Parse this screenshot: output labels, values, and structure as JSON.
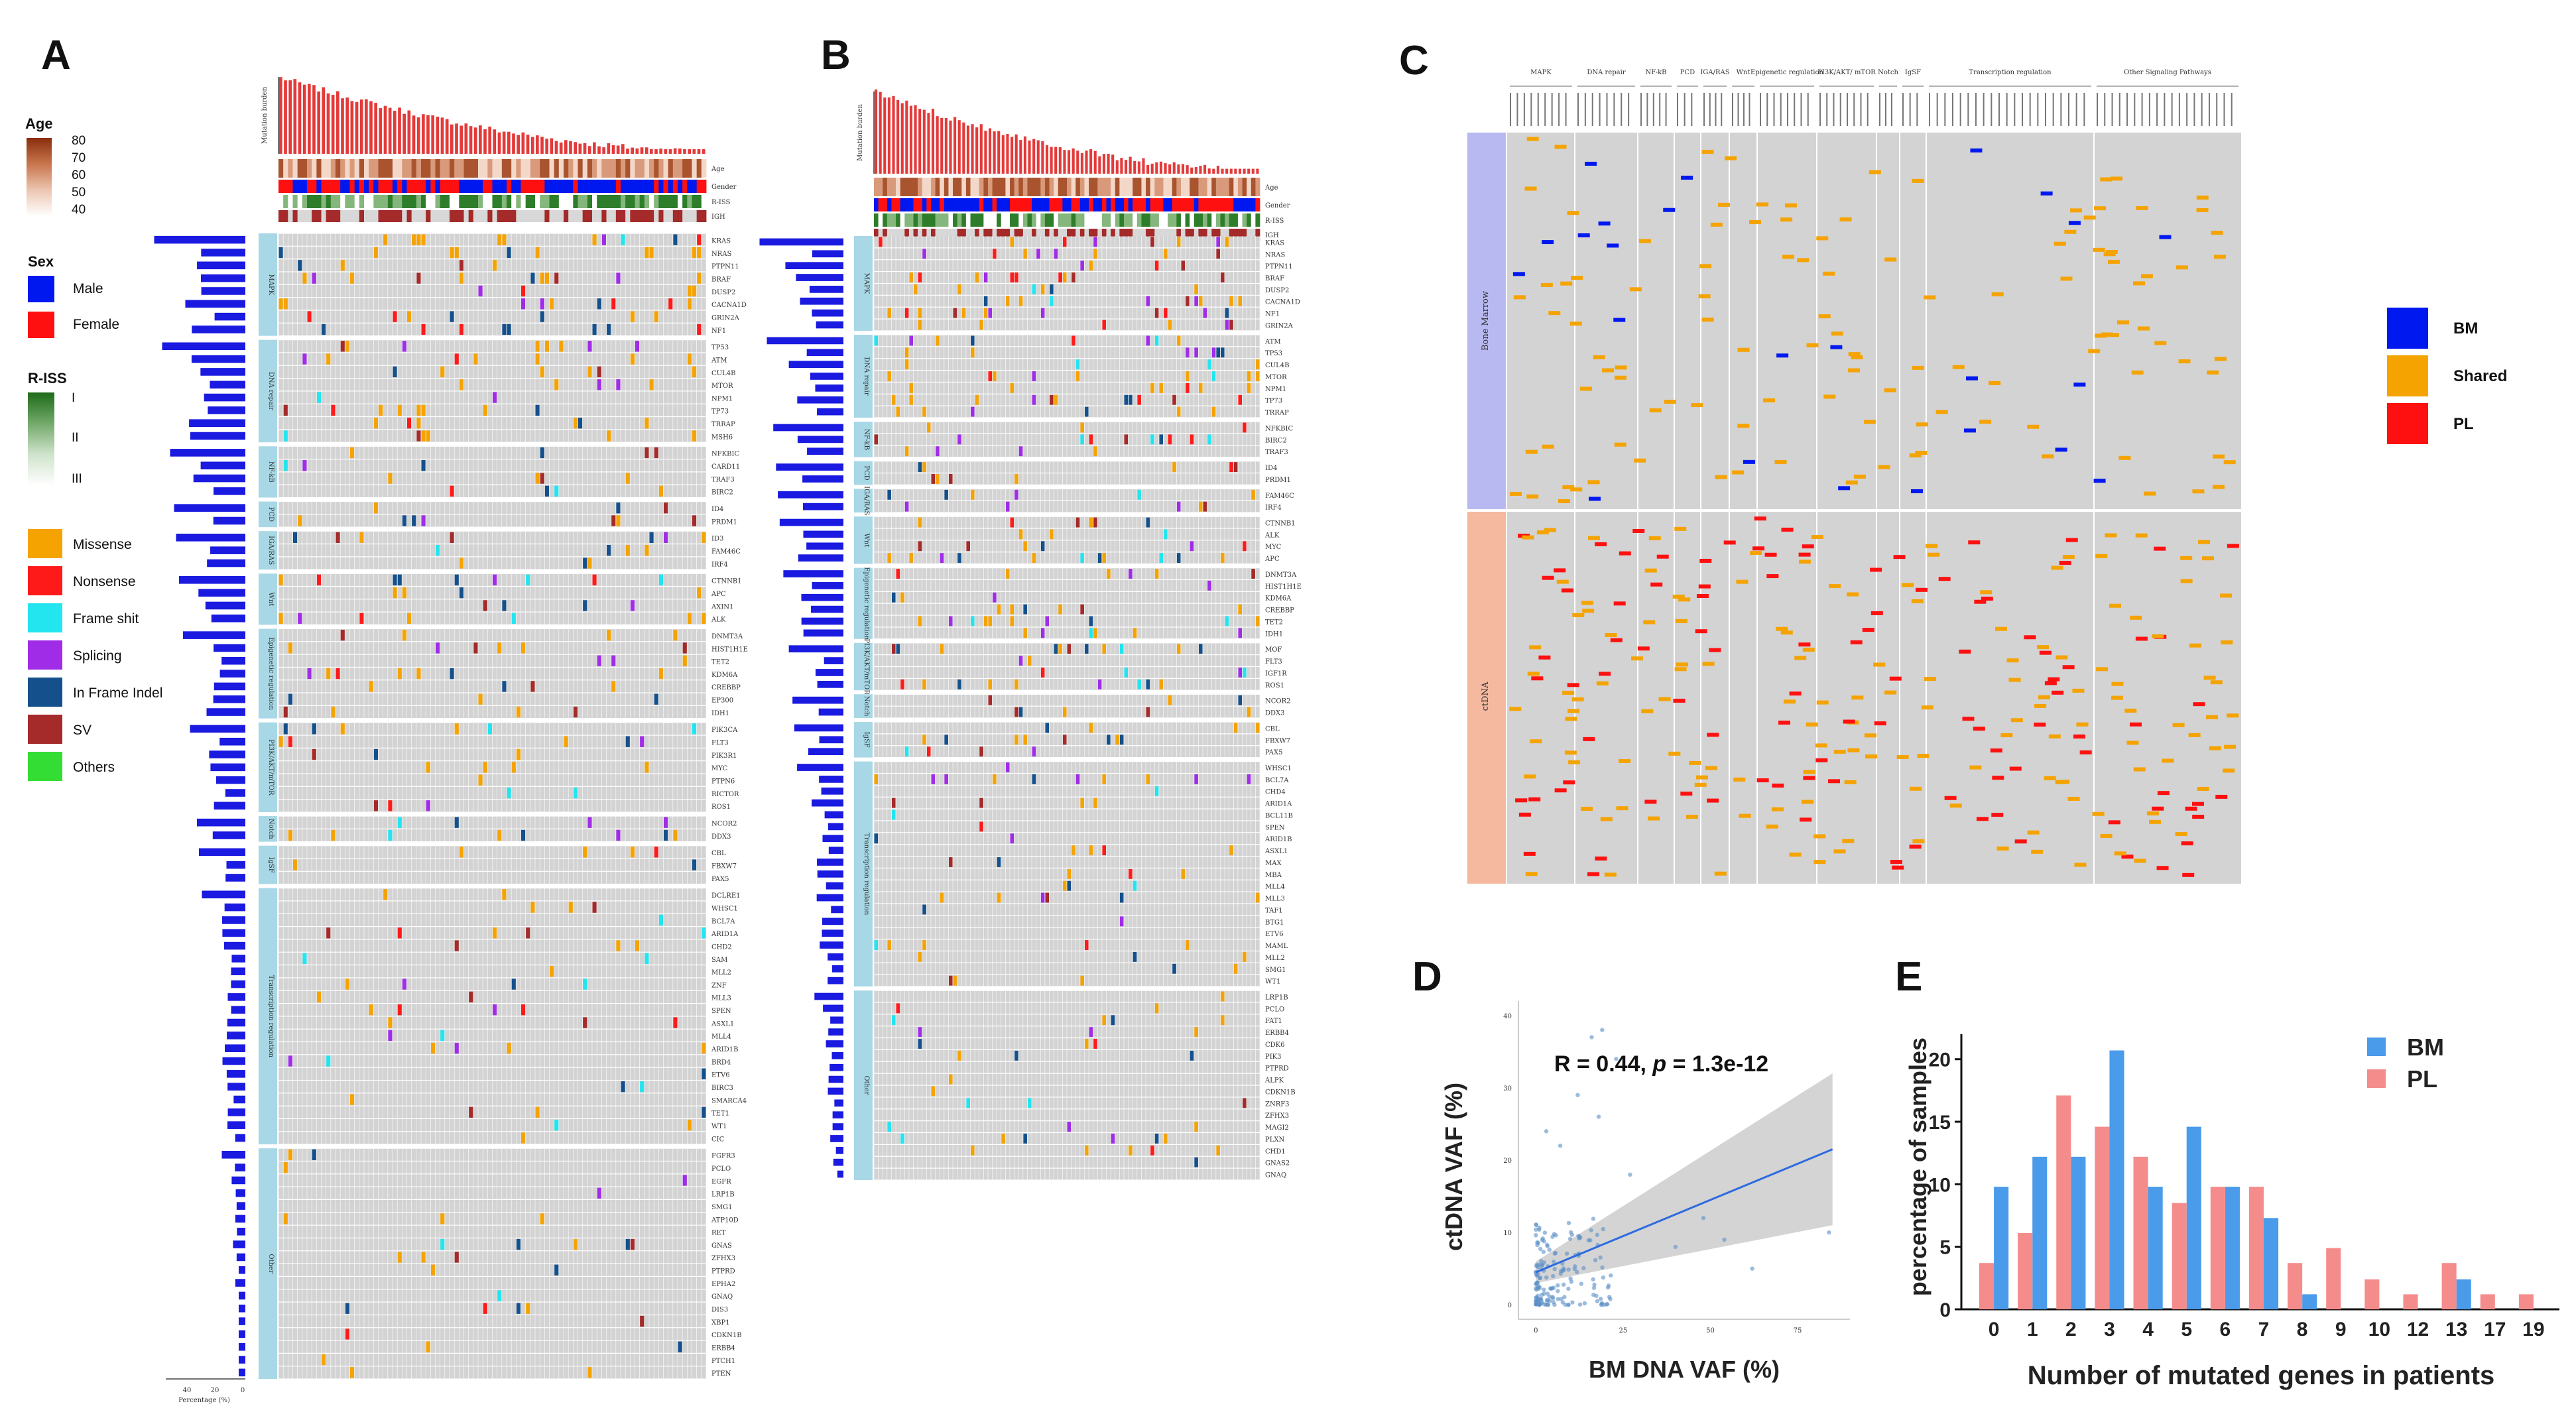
{
  "panels": {
    "a": "A",
    "b": "B",
    "c": "C",
    "d": "D",
    "e": "E"
  },
  "colors": {
    "missense": "#F5A300",
    "nonsense": "#FF1A1A",
    "frameshift": "#22E5F0",
    "splicing": "#A02CE8",
    "inframe": "#14508C",
    "sv": "#A52A2A",
    "others": "#33DD33",
    "male": "#0018F0",
    "female": "#FF1010",
    "tile_bg": "#D3D3D3",
    "side_band": "#A8D8E6",
    "bar_red": "#E33A3A",
    "freq_blue": "#1A1AE0",
    "bm": "#4A9BEA",
    "pl": "#F58C8C",
    "bone_marrow_band": "#B9B9F2",
    "ctdna_band": "#F5B99F"
  },
  "legend_a": {
    "age_title": "Age",
    "age_ticks": [
      "80",
      "70",
      "60",
      "50",
      "40"
    ],
    "sex_title": "Sex",
    "male": "Male",
    "female": "Female",
    "riss_title": "R-ISS",
    "riss_ticks": [
      "I",
      "II",
      "III"
    ],
    "mutation_types": [
      "Missense",
      "Nonsense",
      "Frame shit",
      "Splicing",
      "In Frame Indel",
      "SV",
      "Others"
    ]
  },
  "oncoprint_a": {
    "track_labels": [
      "Age",
      "Gender",
      "R-ISS",
      "IGH"
    ],
    "ylabel": "Mutation burden",
    "xlabel": "Percentage (%)",
    "freq_ticks": [
      "40",
      "20",
      "0"
    ],
    "pathways": [
      {
        "name": "MAPK",
        "genes": [
          "KRAS",
          "NRAS",
          "PTPN11",
          "BRAF",
          "DUSP2",
          "CACNA1D",
          "GRIN2A",
          "NF1"
        ]
      },
      {
        "name": "DNA repair",
        "genes": [
          "TP53",
          "ATM",
          "CUL4B",
          "MTOR",
          "NPM1",
          "TP73",
          "TRRAP",
          "MSH6"
        ]
      },
      {
        "name": "NF-kB",
        "genes": [
          "NFKBIC",
          "CARD11",
          "TRAF3",
          "BIRC2"
        ]
      },
      {
        "name": "PCD",
        "genes": [
          "ID4",
          "PRDM1"
        ]
      },
      {
        "name": "IGA/RAS",
        "genes": [
          "ID3",
          "FAM46C",
          "IRF4"
        ]
      },
      {
        "name": "Wnt",
        "genes": [
          "CTNNB1",
          "APC",
          "AXIN1",
          "ALK"
        ]
      },
      {
        "name": "Epigenetic regulation",
        "genes": [
          "DNMT3A",
          "HIST1H1E",
          "TET2",
          "KDM6A",
          "CREBBP",
          "EP300",
          "IDH1"
        ]
      },
      {
        "name": "PI3K/AKT/mTOR",
        "genes": [
          "PIK3CA",
          "FLT3",
          "PIK3R1",
          "MYC",
          "PTPN6",
          "RICTOR",
          "ROS1"
        ]
      },
      {
        "name": "Notch",
        "genes": [
          "NCOR2",
          "DDX3"
        ]
      },
      {
        "name": "IgSF",
        "genes": [
          "CBL",
          "FBXW7",
          "PAX5"
        ]
      },
      {
        "name": "Transcription regulation",
        "genes": [
          "DCLRE1",
          "WHSC1",
          "BCL7A",
          "ARID1A",
          "CHD2",
          "SAM",
          "MLL2",
          "ZNF",
          "MLL3",
          "SPEN",
          "ASXL1",
          "MLL4",
          "ARID1B",
          "BRD4",
          "ETV6",
          "BIRC3",
          "SMARCA4",
          "TET1",
          "WT1",
          "CIC"
        ]
      },
      {
        "name": "Other",
        "genes": [
          "FGFR3",
          "PCLO",
          "EGFR",
          "LRP1B",
          "SMG1",
          "ATP10D",
          "RET",
          "GNAS",
          "ZFHX3",
          "PTPRD",
          "EPHA2",
          "GNAQ",
          "DIS3",
          "XBP1",
          "CDKN1B",
          "ERBB4",
          "PTCH1",
          "PTEN"
        ]
      }
    ]
  },
  "oncoprint_b": {
    "track_labels": [
      "Age",
      "Gender",
      "R-ISS",
      "IGH"
    ],
    "ylabel": "Mutation burden",
    "pathways": [
      {
        "name": "MAPK",
        "genes": [
          "KRAS",
          "NRAS",
          "PTPN11",
          "BRAF",
          "DUSP2",
          "CACNA1D",
          "NF1",
          "GRIN2A"
        ]
      },
      {
        "name": "DNA repair",
        "genes": [
          "ATM",
          "TP53",
          "CUL4B",
          "MTOR",
          "NPM1",
          "TP73",
          "TRRAP"
        ]
      },
      {
        "name": "NF-kB",
        "genes": [
          "NFKBIC",
          "BIRC2",
          "TRAF3"
        ]
      },
      {
        "name": "PCD",
        "genes": [
          "ID4",
          "PRDM1"
        ]
      },
      {
        "name": "IGA/RAS",
        "genes": [
          "FAM46C",
          "IRF4"
        ]
      },
      {
        "name": "Wnt",
        "genes": [
          "CTNNB1",
          "ALK",
          "MYC",
          "APC"
        ]
      },
      {
        "name": "Epigenetic regulation",
        "genes": [
          "DNMT3A",
          "HIST1H1E",
          "KDM6A",
          "CREBBP",
          "TET2",
          "IDH1"
        ]
      },
      {
        "name": "PI3K/AKT/mTOR",
        "genes": [
          "MOF",
          "FLT3",
          "IGF1R",
          "ROS1"
        ]
      },
      {
        "name": "Notch",
        "genes": [
          "NCOR2",
          "DDX3"
        ]
      },
      {
        "name": "IgSF",
        "genes": [
          "CBL",
          "FBXW7",
          "PAX5"
        ]
      },
      {
        "name": "Transcription regulation",
        "genes": [
          "WHSC1",
          "BCL7A",
          "CHD4",
          "ARID1A",
          "BCL11B",
          "SPEN",
          "ARID1B",
          "ASXL1",
          "MAX",
          "MBA",
          "MLL4",
          "MLL3",
          "TAF1",
          "BTG1",
          "ETV6",
          "MAML",
          "MLL2",
          "SMG1",
          "WT1"
        ]
      },
      {
        "name": "Other",
        "genes": [
          "LRP1B",
          "PCLO",
          "FAT1",
          "ERBB4",
          "CDK6",
          "PIK3",
          "PTPRD",
          "ALPK",
          "CDKN1B",
          "ZNRF3",
          "ZFHX3",
          "MAGI2",
          "PLXN",
          "CHD1",
          "GNAS2",
          "GNAQ"
        ]
      }
    ]
  },
  "heatmap_c": {
    "row_groups": [
      "Bone Marrow",
      "ctDNA"
    ],
    "categories": [
      "MAPK",
      "DNA repair",
      "NF-kB",
      "PCD",
      "IGA/RAS",
      "Wnt",
      "Epigenetic regulation",
      "PI3K/AKT/ mTOR",
      "Notch",
      "IgSF",
      "Transcription regulation",
      "Other Signaling Pathways"
    ],
    "legend": [
      "BM",
      "Shared",
      "PL"
    ]
  },
  "chart_data": [
    {
      "type": "scatter",
      "panel": "D",
      "title": "",
      "xlabel": "BM DNA VAF (%)",
      "ylabel": "ctDNA VAF (%)",
      "annotation_prefix": "R = 0.44, ",
      "annotation_p": "p",
      "annotation_suffix": " = 1.3e-12",
      "xlim": [
        -5,
        90
      ],
      "ylim": [
        -2,
        42
      ],
      "xticks": [
        "0",
        "25",
        "50",
        "75"
      ],
      "yticks": [
        "0",
        "10",
        "20",
        "30",
        "40"
      ],
      "fit_line": {
        "x0": 0,
        "y0": 4.5,
        "x1": 85,
        "y1": 21.5
      },
      "points_summary": "dense cluster near origin (x 0-15, y 0-10) with sparse points up to x 84, y 38"
    },
    {
      "type": "bar",
      "panel": "E",
      "title": "",
      "xlabel": "Number of mutated genes in patients",
      "ylabel": "percentage of samples",
      "categories": [
        "0",
        "1",
        "2",
        "3",
        "4",
        "5",
        "6",
        "7",
        "8",
        "9",
        "10",
        "12",
        "13",
        "17",
        "19"
      ],
      "series": [
        {
          "name": "BM",
          "values": [
            9.8,
            12.2,
            12.2,
            20.7,
            9.8,
            14.6,
            9.8,
            7.3,
            1.2,
            0,
            0,
            0,
            2.4,
            0,
            0
          ]
        },
        {
          "name": "PL",
          "values": [
            3.7,
            6.1,
            17.1,
            14.6,
            12.2,
            8.5,
            9.8,
            9.8,
            3.7,
            4.9,
            2.4,
            1.2,
            3.7,
            1.2,
            1.2
          ]
        }
      ],
      "yticks": [
        "0",
        "5",
        "10",
        "15",
        "20"
      ],
      "ylim": [
        0,
        22
      ]
    }
  ]
}
